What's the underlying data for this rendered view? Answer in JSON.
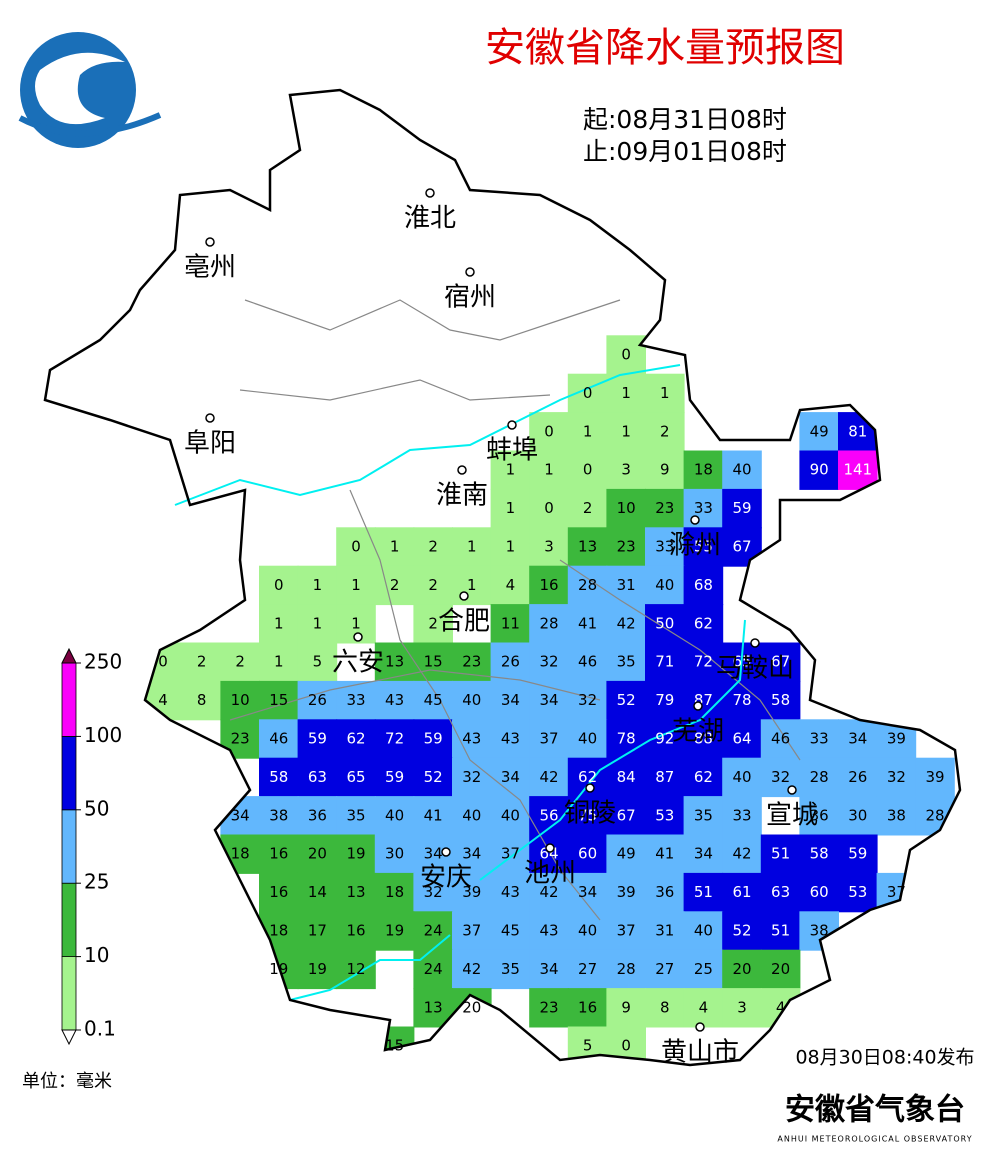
{
  "header": {
    "title": "安徽省降水量预报图",
    "start": "起:08月31日08时",
    "end": "止:09月01日08时"
  },
  "cities": [
    "淮北",
    "亳州",
    "宿州",
    "阜阳",
    "蚌埠",
    "淮南",
    "滁州",
    "合肥",
    "六安",
    "马鞍山",
    "芜湖",
    "铜陵",
    "宣城",
    "安庆",
    "池州",
    "黄山市"
  ],
  "legend": {
    "ticks": [
      0.1,
      10,
      25,
      50,
      100,
      250
    ],
    "colors": [
      "#a5f38e",
      "#3cb83c",
      "#62b7fd",
      "#0000e0",
      "#fa00fa"
    ],
    "unit": "单位：毫米"
  },
  "grid": {
    "rows": [
      [
        null,
        null,
        null,
        null,
        null,
        null,
        null,
        null,
        null,
        null,
        null,
        null,
        0,
        null,
        null,
        null,
        null,
        null,
        null,
        null,
        null
      ],
      [
        null,
        null,
        null,
        null,
        null,
        null,
        null,
        null,
        null,
        null,
        null,
        0,
        1,
        1,
        null,
        null,
        null,
        null,
        null,
        null,
        null
      ],
      [
        null,
        null,
        null,
        null,
        null,
        null,
        null,
        null,
        null,
        null,
        0,
        1,
        1,
        2,
        null,
        null,
        null,
        49,
        81,
        null,
        null
      ],
      [
        null,
        null,
        null,
        null,
        null,
        null,
        null,
        null,
        null,
        1,
        1,
        0,
        3,
        9,
        18,
        40,
        null,
        90,
        141,
        null,
        null
      ],
      [
        null,
        null,
        null,
        null,
        null,
        null,
        null,
        null,
        null,
        1,
        0,
        2,
        10,
        23,
        33,
        59,
        null,
        null,
        null,
        null,
        null
      ],
      [
        null,
        null,
        null,
        null,
        null,
        0,
        1,
        2,
        1,
        1,
        3,
        13,
        23,
        33,
        55,
        67,
        null,
        null,
        null,
        null,
        null
      ],
      [
        null,
        null,
        null,
        0,
        1,
        1,
        2,
        2,
        1,
        4,
        16,
        28,
        31,
        40,
        68,
        null,
        null,
        null,
        null,
        null,
        null
      ],
      [
        null,
        null,
        null,
        1,
        1,
        1,
        null,
        2,
        null,
        11,
        28,
        41,
        42,
        50,
        62,
        null,
        null,
        null,
        null,
        null,
        null
      ],
      [
        0,
        2,
        2,
        1,
        5,
        null,
        13,
        15,
        23,
        26,
        32,
        46,
        35,
        71,
        72,
        65,
        67,
        null,
        null,
        null,
        null
      ],
      [
        4,
        8,
        10,
        15,
        26,
        33,
        43,
        45,
        40,
        34,
        34,
        32,
        52,
        79,
        87,
        78,
        58,
        null,
        null,
        null,
        null
      ],
      [
        null,
        null,
        23,
        46,
        59,
        62,
        72,
        59,
        43,
        43,
        37,
        40,
        78,
        92,
        88,
        64,
        46,
        33,
        34,
        39,
        null
      ],
      [
        null,
        null,
        null,
        58,
        63,
        65,
        59,
        52,
        32,
        34,
        42,
        62,
        84,
        87,
        62,
        40,
        32,
        28,
        26,
        32,
        39
      ],
      [
        null,
        null,
        34,
        38,
        36,
        35,
        40,
        41,
        40,
        40,
        56,
        75,
        67,
        53,
        35,
        33,
        null,
        36,
        30,
        38,
        28
      ],
      [
        null,
        null,
        18,
        16,
        20,
        19,
        30,
        34,
        34,
        37,
        64,
        60,
        49,
        41,
        34,
        42,
        51,
        58,
        59,
        null,
        null
      ],
      [
        null,
        null,
        null,
        16,
        14,
        13,
        18,
        32,
        39,
        43,
        42,
        34,
        39,
        36,
        51,
        61,
        63,
        60,
        53,
        37,
        null
      ],
      [
        null,
        null,
        null,
        18,
        17,
        16,
        19,
        24,
        37,
        45,
        43,
        40,
        37,
        31,
        40,
        52,
        51,
        38,
        null,
        null,
        null
      ],
      [
        null,
        null,
        null,
        19,
        19,
        12,
        null,
        24,
        42,
        35,
        34,
        27,
        28,
        27,
        25,
        20,
        20,
        null,
        null,
        null,
        null
      ],
      [
        null,
        null,
        null,
        null,
        null,
        null,
        null,
        13,
        20,
        null,
        23,
        16,
        9,
        8,
        4,
        3,
        4,
        null,
        null,
        null,
        null
      ],
      [
        null,
        null,
        null,
        null,
        null,
        null,
        15,
        null,
        null,
        null,
        null,
        5,
        0,
        null,
        null,
        null,
        null,
        null,
        null,
        null,
        null
      ]
    ]
  },
  "footer": {
    "issued": "08月30日08:40发布",
    "agency": "安徽省气象台",
    "agency_en": "ANHUI METEOROLOGICAL OBSERVATORY"
  }
}
